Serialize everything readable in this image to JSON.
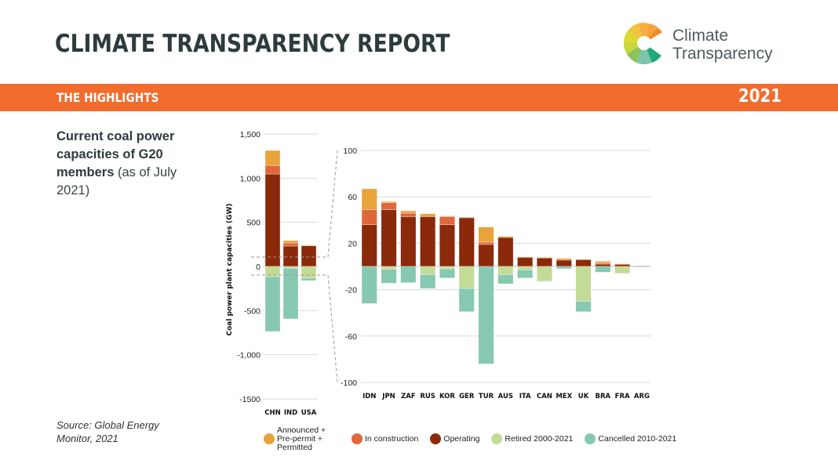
{
  "header": {
    "title": "CLIMATE TRANSPARENCY REPORT",
    "logo_line1": "Climate",
    "logo_line2": "Transparency",
    "band_label": "THE HIGHLIGHTS",
    "band_year": "2021"
  },
  "subtitle": {
    "bold": "Current coal power capacities of G20 members",
    "normal": " (as of July 2021)"
  },
  "source": "Source: Global Energy Monitor, 2021",
  "colors": {
    "brand_orange": "#f16c2d",
    "announced": "#e8a33a",
    "construction": "#e0673a",
    "operating": "#8a2a0a",
    "retired": "#c4db97",
    "cancelled": "#86c9b0"
  },
  "chart_data": [
    {
      "type": "bar",
      "stacked": true,
      "title": "Current coal power capacities of G20 members (as of July 2021)",
      "ylabel": "Coal power plant capacities (GW)",
      "xlabel": "",
      "ylim": [
        -1500,
        1500
      ],
      "yticks": [
        1500,
        1000,
        500,
        0,
        -500,
        -1000,
        -1500
      ],
      "ytick_labels": [
        "1,500",
        "1,000",
        "500",
        "0",
        "-500",
        "-1,000",
        "-1500"
      ],
      "grid": true,
      "categories": [
        "CHN",
        "IND",
        "USA"
      ],
      "series": [
        {
          "name": "Operating",
          "key": "operating",
          "values": [
            1047,
            231,
            238
          ]
        },
        {
          "name": "In construction",
          "key": "construction",
          "values": [
            97,
            35,
            0
          ]
        },
        {
          "name": "Announced + Pre-permit + Permitted",
          "key": "announced",
          "values": [
            170,
            27,
            2
          ]
        },
        {
          "name": "Retired 2000-2021",
          "key": "retired",
          "values": [
            -115,
            -20,
            -133
          ]
        },
        {
          "name": "Cancelled 2010-2021",
          "key": "cancelled",
          "values": [
            -621,
            -574,
            -27
          ]
        }
      ]
    },
    {
      "type": "bar",
      "stacked": true,
      "title": "",
      "ylabel": "",
      "xlabel": "",
      "ylim": [
        -100,
        100
      ],
      "yticks": [
        100,
        60,
        20,
        -20,
        -60,
        -100
      ],
      "ytick_labels": [
        "100",
        "60",
        "20",
        "-20",
        "-60",
        "-100"
      ],
      "grid": true,
      "categories": [
        "IDN",
        "JPN",
        "ZAF",
        "RUS",
        "KOR",
        "GER",
        "TUR",
        "AUS",
        "ITA",
        "CAN",
        "MEX",
        "UK",
        "BRA",
        "FRA",
        "ARG"
      ],
      "series": [
        {
          "name": "Operating",
          "key": "operating",
          "values": [
            36,
            49,
            43,
            43,
            36,
            42,
            19,
            25,
            8,
            7.5,
            5.5,
            6,
            2,
            2,
            0.5
          ]
        },
        {
          "name": "In construction",
          "key": "construction",
          "values": [
            13,
            6,
            3,
            0,
            7,
            0.5,
            2,
            0,
            0,
            0,
            0,
            0,
            1,
            0,
            0
          ]
        },
        {
          "name": "Announced + Pre-permit + Permitted",
          "key": "announced",
          "values": [
            18,
            1,
            2,
            2.5,
            0.5,
            0,
            13,
            1,
            0.3,
            0.3,
            1.5,
            0.3,
            1.5,
            0.3,
            0
          ]
        },
        {
          "name": "Retired 2000-2021",
          "key": "retired",
          "values": [
            0,
            -2.5,
            0,
            -7,
            -2,
            -19,
            0,
            -7,
            -3,
            -12.5,
            0,
            -30,
            0,
            -6,
            0
          ]
        },
        {
          "name": "Cancelled 2010-2021",
          "key": "cancelled",
          "values": [
            -32,
            -12,
            -14,
            -12,
            -8,
            -20,
            -84,
            -8,
            -7,
            -0.5,
            -2,
            -9,
            -5,
            0,
            -0.5
          ]
        }
      ]
    }
  ],
  "legend": [
    {
      "key": "announced",
      "label": "Announced + Pre-permit + Permitted"
    },
    {
      "key": "construction",
      "label": "In construction"
    },
    {
      "key": "operating",
      "label": "Operating"
    },
    {
      "key": "retired",
      "label": "Retired 2000-2021"
    },
    {
      "key": "cancelled",
      "label": "Cancelled 2010-2021"
    }
  ]
}
